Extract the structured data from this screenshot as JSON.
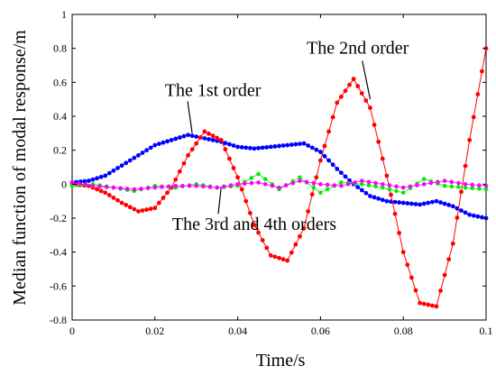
{
  "chart_data": {
    "type": "line",
    "title": "",
    "xlabel": "Time/s",
    "ylabel": "Median function of modal response/m",
    "xlim": [
      0,
      0.1
    ],
    "ylim": [
      -0.8,
      1
    ],
    "xticks": [
      "0",
      "0.02",
      "0.04",
      "0.06",
      "0.08",
      "0.1"
    ],
    "yticks": [
      "-0.8",
      "-0.6",
      "-0.4",
      "-0.2",
      "0",
      "0.2",
      "0.4",
      "0.6",
      "0.8",
      "1"
    ],
    "grid": false,
    "legend": "none",
    "series": [
      {
        "key": "mode1",
        "color": "#0000ff",
        "x": [
          0,
          0.004,
          0.008,
          0.012,
          0.016,
          0.02,
          0.024,
          0.028,
          0.032,
          0.036,
          0.04,
          0.044,
          0.048,
          0.052,
          0.056,
          0.06,
          0.064,
          0.068,
          0.072,
          0.076,
          0.08,
          0.084,
          0.088,
          0.092,
          0.096,
          0.1
        ],
        "y": [
          0.01,
          0.02,
          0.05,
          0.11,
          0.17,
          0.23,
          0.26,
          0.29,
          0.27,
          0.25,
          0.22,
          0.21,
          0.22,
          0.23,
          0.24,
          0.19,
          0.09,
          0.0,
          -0.07,
          -0.1,
          -0.11,
          -0.12,
          -0.1,
          -0.13,
          -0.18,
          -0.2
        ]
      },
      {
        "key": "mode2",
        "color": "#ff0000",
        "x": [
          0,
          0.004,
          0.008,
          0.012,
          0.016,
          0.02,
          0.024,
          0.028,
          0.032,
          0.036,
          0.04,
          0.044,
          0.048,
          0.052,
          0.056,
          0.06,
          0.064,
          0.068,
          0.072,
          0.076,
          0.08,
          0.084,
          0.088,
          0.092,
          0.096,
          0.1
        ],
        "y": [
          0.0,
          -0.01,
          -0.05,
          -0.11,
          -0.16,
          -0.14,
          -0.02,
          0.17,
          0.31,
          0.26,
          0.04,
          -0.24,
          -0.42,
          -0.45,
          -0.26,
          0.14,
          0.48,
          0.62,
          0.45,
          0.05,
          -0.4,
          -0.7,
          -0.72,
          -0.35,
          0.26,
          0.8
        ]
      },
      {
        "key": "mode3",
        "color": "#00ee00",
        "x": [
          0,
          0.005,
          0.01,
          0.015,
          0.02,
          0.025,
          0.03,
          0.035,
          0.04,
          0.045,
          0.05,
          0.055,
          0.06,
          0.065,
          0.07,
          0.075,
          0.08,
          0.085,
          0.09,
          0.095,
          0.1
        ],
        "y": [
          -0.01,
          0.0,
          -0.02,
          -0.04,
          -0.01,
          -0.02,
          0.0,
          -0.02,
          -0.01,
          0.06,
          -0.03,
          0.04,
          -0.05,
          0.01,
          0.0,
          -0.02,
          -0.05,
          0.03,
          -0.01,
          -0.02,
          -0.03
        ]
      },
      {
        "key": "mode4",
        "color": "#ff00ff",
        "x": [
          0,
          0.005,
          0.01,
          0.015,
          0.02,
          0.025,
          0.03,
          0.035,
          0.04,
          0.045,
          0.05,
          0.055,
          0.06,
          0.065,
          0.07,
          0.075,
          0.08,
          0.085,
          0.09,
          0.095,
          0.1
        ],
        "y": [
          0.01,
          -0.01,
          -0.02,
          -0.03,
          -0.02,
          -0.01,
          -0.01,
          -0.02,
          0.0,
          0.01,
          -0.02,
          0.02,
          0.0,
          -0.01,
          0.02,
          0.0,
          -0.02,
          0.0,
          0.02,
          0.0,
          -0.01
        ]
      }
    ],
    "annotations": [
      {
        "text": "The 1st order",
        "x": 0.034,
        "y": 0.52,
        "to_x": 0.029,
        "to_y": 0.3
      },
      {
        "text": "The 2nd order",
        "x": 0.069,
        "y": 0.77,
        "to_x": 0.072,
        "to_y": 0.5
      },
      {
        "text": "The 3rd and 4th orders",
        "x": 0.044,
        "y": -0.27,
        "to_x": 0.036,
        "to_y": -0.02
      }
    ]
  }
}
